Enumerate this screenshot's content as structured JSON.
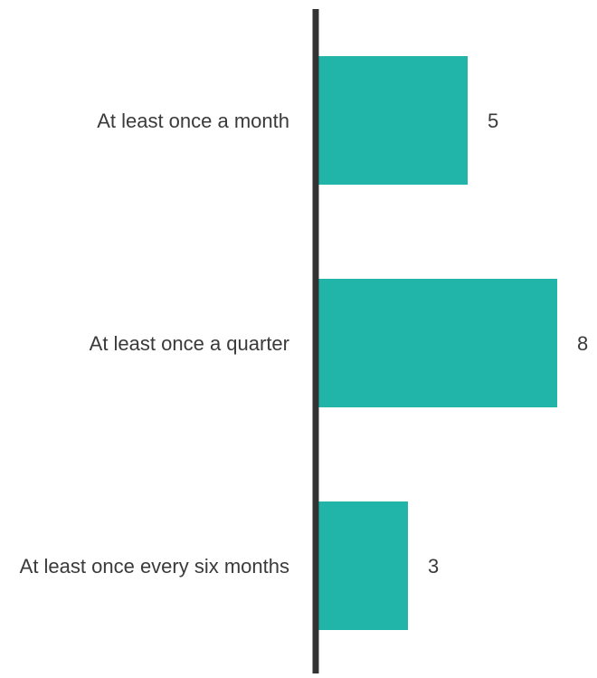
{
  "chart_data": {
    "type": "bar",
    "orientation": "horizontal",
    "categories": [
      "At least once a month",
      "At least once a quarter",
      "At least once every six months"
    ],
    "values": [
      5,
      8,
      3
    ],
    "data_labels": [
      "5",
      "8",
      "3"
    ],
    "title": "",
    "xlabel": "",
    "ylabel": "",
    "xlim": [
      0,
      8
    ],
    "grid": false,
    "legend": "none",
    "colors": {
      "bar": "#20b5a8",
      "axis": "#333333",
      "text": "#3a3a3a"
    }
  }
}
